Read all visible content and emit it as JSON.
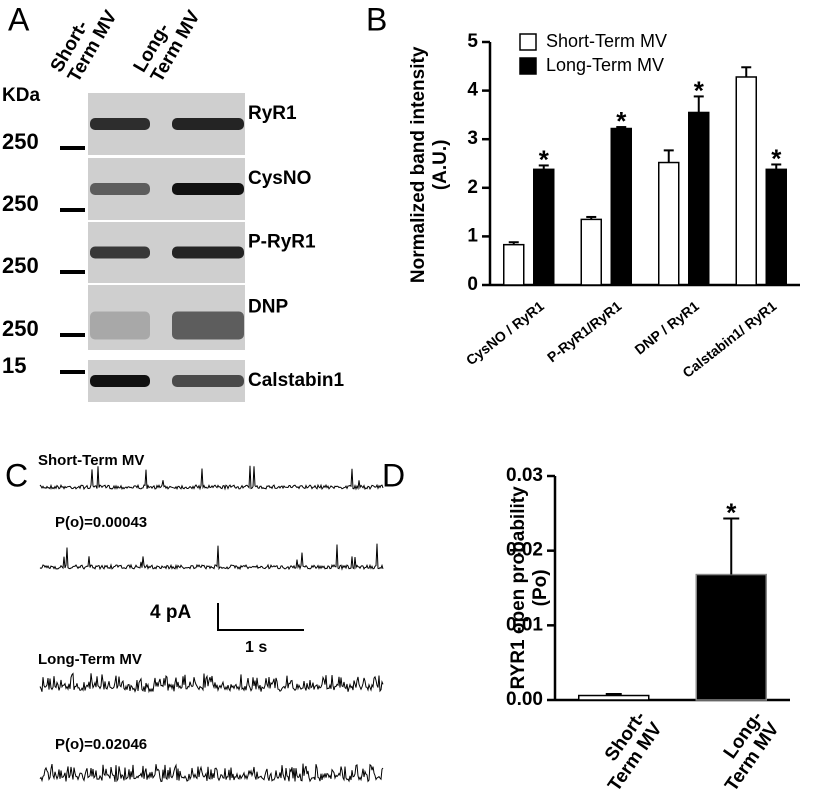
{
  "panels": {
    "a": "A",
    "b": "B",
    "c": "C",
    "d": "D"
  },
  "blot": {
    "kda": "KDa",
    "columns": [
      "Short-\nTerm MV",
      "Long-\nTerm MV"
    ],
    "bands": [
      {
        "label": "RyR1",
        "marker": "250"
      },
      {
        "label": "CysNO",
        "marker": "250"
      },
      {
        "label": "P-RyR1",
        "marker": "250"
      },
      {
        "label": "DNP",
        "marker": "250"
      },
      {
        "label": "Calstabin1",
        "marker": "15"
      }
    ]
  },
  "traces": {
    "groups": [
      {
        "label": "Short-Term MV",
        "po": "P(o)=0.00043"
      },
      {
        "label": "Long-Term MV",
        "po": "P(o)=0.02046"
      }
    ],
    "scale_y": "4 pA",
    "scale_x": "1 s"
  },
  "chart_data": [
    {
      "type": "bar",
      "ylabel": "Normalized band intensity\n(A.U.)",
      "categories": [
        "CysNO / RyR1",
        "P-RyR1/RyR1",
        "DNP / RyR1",
        "Calstabin1/ RyR1"
      ],
      "series": [
        {
          "name": "Short-Term MV",
          "color": "#ffffff",
          "values": [
            0.83,
            1.35,
            2.52,
            4.28
          ],
          "errors": [
            0.05,
            0.05,
            0.25,
            0.2
          ]
        },
        {
          "name": "Long-Term MV",
          "color": "#000000",
          "values": [
            2.38,
            3.22,
            3.55,
            2.38
          ],
          "errors": [
            0.08,
            0.03,
            0.33,
            0.1
          ],
          "annotations": [
            "*",
            "*",
            "*",
            "*"
          ]
        }
      ],
      "ylim": [
        0,
        5
      ],
      "yticks": [
        0,
        1,
        2,
        3,
        4,
        5
      ],
      "legend": "top-left"
    },
    {
      "type": "bar",
      "ylabel": "RYR1 open probability\n(Po)",
      "categories": [
        "Short-\nTerm MV",
        "Long-\nTerm MV"
      ],
      "values": [
        0.0006,
        0.0168
      ],
      "errors": [
        0.0002,
        0.0075
      ],
      "colors": [
        "#ffffff",
        "#000000"
      ],
      "annotations": [
        null,
        "*"
      ],
      "ylim": [
        0,
        0.03
      ],
      "yticks": [
        {
          "value": 0,
          "label": "0.00"
        },
        0.01,
        0.02,
        0.03
      ]
    }
  ]
}
